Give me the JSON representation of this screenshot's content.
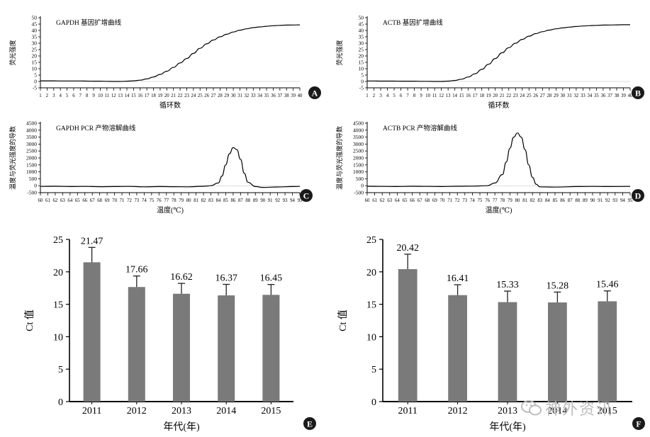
{
  "watermark": {
    "text": "神外资讯",
    "icon": "wechat-icon",
    "color": "#bdbdbd"
  },
  "chart_data": [
    {
      "id": "A",
      "type": "line",
      "title": "GAPDH 基因扩增曲线",
      "xlabel": "循环数",
      "ylabel": "荧光强度",
      "x": [
        1,
        2,
        3,
        4,
        5,
        6,
        7,
        8,
        9,
        10,
        11,
        12,
        13,
        14,
        15,
        16,
        17,
        18,
        19,
        20,
        21,
        22,
        23,
        24,
        25,
        26,
        27,
        28,
        29,
        30,
        31,
        32,
        33,
        34,
        35,
        36,
        37,
        38,
        39,
        40
      ],
      "y": [
        0.5,
        0.5,
        0.5,
        0.4,
        0.4,
        0.4,
        0.4,
        0.3,
        0.2,
        0.2,
        0.1,
        0,
        0,
        0.2,
        0.5,
        1,
        2,
        3.5,
        5.5,
        8,
        11,
        14.5,
        18,
        22,
        26,
        29.5,
        32.5,
        35,
        37,
        38.8,
        40.2,
        41.3,
        42.2,
        42.8,
        43.3,
        43.7,
        44,
        44.2,
        44.3,
        44.4
      ],
      "xlim": [
        1,
        40
      ],
      "ylim": [
        -5,
        50
      ],
      "yticks": [
        -5,
        0,
        5,
        10,
        15,
        20,
        25,
        30,
        35,
        40,
        45,
        50
      ],
      "xticks": [
        1,
        2,
        3,
        4,
        5,
        6,
        7,
        8,
        9,
        10,
        11,
        12,
        13,
        14,
        15,
        16,
        17,
        18,
        19,
        20,
        21,
        22,
        23,
        24,
        25,
        26,
        27,
        28,
        29,
        30,
        31,
        32,
        33,
        34,
        35,
        36,
        37,
        38,
        39,
        40
      ],
      "badge": "A"
    },
    {
      "id": "B",
      "type": "line",
      "title": "ACTB 基因扩增曲线",
      "xlabel": "循环数",
      "ylabel": "荧光强度",
      "x": [
        1,
        2,
        3,
        4,
        5,
        6,
        7,
        8,
        9,
        10,
        11,
        12,
        13,
        14,
        15,
        16,
        17,
        18,
        19,
        20,
        21,
        22,
        23,
        24,
        25,
        26,
        27,
        28,
        29,
        30,
        31,
        32,
        33,
        34,
        35,
        36,
        37,
        38,
        39,
        40
      ],
      "y": [
        0.4,
        0.4,
        0.3,
        0.3,
        0.3,
        0.2,
        0.2,
        0.2,
        0.1,
        0.1,
        0,
        0,
        0.3,
        0.8,
        1.8,
        3.5,
        6,
        9.5,
        13.5,
        18,
        22.5,
        26.5,
        30,
        33,
        35.5,
        37.5,
        39,
        40.3,
        41.3,
        42,
        42.6,
        43.1,
        43.5,
        43.8,
        44,
        44.2,
        44.3,
        44.4,
        44.5,
        44.5
      ],
      "xlim": [
        1,
        40
      ],
      "ylim": [
        -5,
        50
      ],
      "yticks": [
        -5,
        0,
        5,
        10,
        15,
        20,
        25,
        30,
        35,
        40,
        45,
        50
      ],
      "xticks": [
        1,
        2,
        3,
        4,
        5,
        6,
        7,
        8,
        9,
        10,
        11,
        12,
        13,
        14,
        15,
        16,
        17,
        18,
        19,
        20,
        21,
        22,
        23,
        24,
        25,
        26,
        27,
        28,
        29,
        30,
        31,
        32,
        33,
        34,
        35,
        36,
        37,
        38,
        39,
        40
      ],
      "badge": "B"
    },
    {
      "id": "C",
      "type": "line",
      "title": "GAPDH PCR 产物溶解曲线",
      "xlabel": "温度(℃)",
      "ylabel": "温度与荧光强度的导数",
      "x": [
        60,
        62,
        64,
        66,
        68,
        70,
        72,
        74,
        76,
        78,
        80,
        82,
        83,
        84,
        84.5,
        85,
        85.5,
        86,
        86.5,
        87,
        87.5,
        88,
        89,
        90,
        92,
        94,
        95
      ],
      "y": [
        -50,
        -40,
        -60,
        -50,
        -70,
        -60,
        -50,
        -80,
        -60,
        -70,
        -80,
        -40,
        0,
        200,
        700,
        1500,
        2300,
        2750,
        2600,
        1900,
        900,
        250,
        -60,
        -120,
        -90,
        -60,
        -50
      ],
      "xlim": [
        60,
        95
      ],
      "ylim": [
        -500,
        4500
      ],
      "yticks": [
        -500,
        0,
        500,
        1000,
        1500,
        2000,
        2500,
        3000,
        3500,
        4000,
        4500
      ],
      "xticks": [
        60,
        61,
        62,
        63,
        64,
        65,
        66,
        67,
        68,
        69,
        70,
        71,
        72,
        73,
        74,
        75,
        76,
        77,
        78,
        79,
        80,
        81,
        82,
        83,
        84,
        85,
        86,
        87,
        88,
        89,
        90,
        91,
        92,
        93,
        94,
        95
      ],
      "badge": "C"
    },
    {
      "id": "D",
      "type": "line",
      "title": "ACTB PCR 产物溶解曲线",
      "xlabel": "温度(℃)",
      "ylabel": "温度与荧光强度的导数",
      "x": [
        60,
        62,
        64,
        66,
        68,
        70,
        72,
        74,
        76,
        77,
        78,
        78.5,
        79,
        79.5,
        80,
        80.5,
        81,
        81.5,
        82,
        82.5,
        83,
        85,
        88,
        90,
        92,
        95
      ],
      "y": [
        -40,
        -50,
        -60,
        -40,
        -50,
        -60,
        -40,
        -30,
        0,
        200,
        800,
        1700,
        2700,
        3500,
        3800,
        3500,
        2600,
        1500,
        600,
        100,
        -80,
        -100,
        -60,
        -50,
        -60,
        -50
      ],
      "xlim": [
        60,
        95
      ],
      "ylim": [
        -500,
        4500
      ],
      "yticks": [
        -500,
        0,
        500,
        1000,
        1500,
        2000,
        2500,
        3000,
        3500,
        4000,
        4500
      ],
      "xticks": [
        60,
        61,
        62,
        63,
        64,
        65,
        66,
        67,
        68,
        69,
        70,
        71,
        72,
        73,
        74,
        75,
        76,
        77,
        78,
        79,
        80,
        81,
        82,
        83,
        84,
        85,
        86,
        87,
        88,
        89,
        90,
        91,
        92,
        93,
        94,
        95
      ],
      "badge": "D"
    },
    {
      "id": "E",
      "type": "bar",
      "categories": [
        "2011",
        "2012",
        "2013",
        "2014",
        "2015"
      ],
      "values": [
        21.47,
        17.66,
        16.62,
        16.37,
        16.45
      ],
      "errors": [
        2.3,
        1.7,
        1.6,
        1.7,
        1.6
      ],
      "labels": [
        "21.47",
        "17.66",
        "16.62",
        "16.37",
        "16.45"
      ],
      "xlabel": "年代(年)",
      "ylabel": "Ct 值",
      "ylim": [
        0,
        25
      ],
      "yticks": [
        0,
        5,
        10,
        15,
        20,
        25
      ],
      "bar_color": "#7a7a7a",
      "badge": "E"
    },
    {
      "id": "F",
      "type": "bar",
      "categories": [
        "2011",
        "2012",
        "2013",
        "2014",
        "2015"
      ],
      "values": [
        20.42,
        16.41,
        15.33,
        15.28,
        15.46
      ],
      "errors": [
        2.3,
        1.6,
        1.7,
        1.6,
        1.6
      ],
      "labels": [
        "20.42",
        "16.41",
        "15.33",
        "15.28",
        "15.46"
      ],
      "xlabel": "年代(年)",
      "ylabel": "Ct 值",
      "ylim": [
        0,
        25
      ],
      "yticks": [
        0,
        5,
        10,
        15,
        20,
        25
      ],
      "bar_color": "#7a7a7a",
      "badge": "F"
    }
  ]
}
